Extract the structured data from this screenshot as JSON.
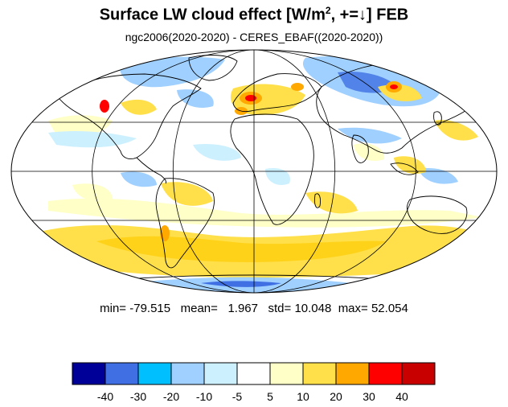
{
  "title": {
    "prefix": "Surface LW cloud effect [W/m",
    "sup": "2",
    "suffix": ", +=↓]  FEB"
  },
  "subtitle": "ngc2006(2020-2020) - CERES_EBAF((2020-2020))",
  "stats": {
    "min_label": "min=",
    "min": "-79.515",
    "mean_label": "mean=",
    "mean": "1.967",
    "std_label": "std=",
    "std": "10.048",
    "max_label": "max=",
    "max": "52.054"
  },
  "colorbar": {
    "colors": [
      "#000099",
      "#3f6fe2",
      "#00bfff",
      "#a0d0ff",
      "#cdf0ff",
      "#ffffff",
      "#ffffc8",
      "#ffe04a",
      "#ffa800",
      "#ff0000",
      "#c80000"
    ],
    "tick_labels": [
      "-40",
      "-30",
      "-20",
      "-10",
      "-5",
      "5",
      "10",
      "20",
      "30",
      "40"
    ]
  },
  "map": {
    "projection": "mollweide",
    "ocean_background": "#ffffff",
    "grid_color": "#000000"
  }
}
